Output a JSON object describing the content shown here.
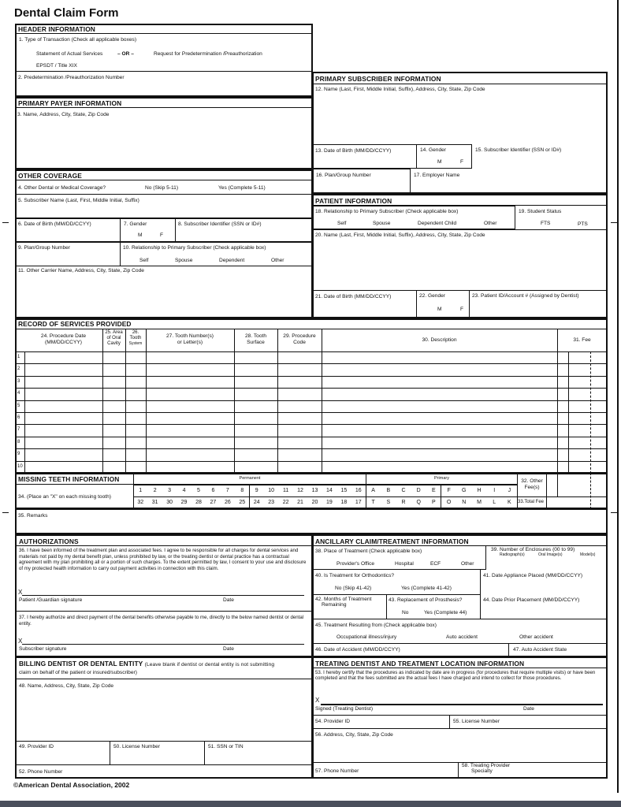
{
  "title": "Dental Claim Form",
  "header": {
    "title": "HEADER INFORMATION",
    "item1": "1. Type of Transaction (Check all applicable boxes)",
    "statement": "Statement of Actual Services",
    "or": "– OR –",
    "predetermination": "Request for Predetermination /Preauthorization",
    "epsdt": "EPSDT / Title XIX",
    "item2": "2. Predetermination /Preauthorization Number"
  },
  "payer": {
    "title": "PRIMARY PAYER INFORMATION",
    "item3": "3. Name, Address, City, State, Zip Code"
  },
  "other": {
    "title": "OTHER COVERAGE",
    "item4": "4. Other Dental or Medical Coverage?",
    "no": "No  (Skip 5-11)",
    "yes": "Yes (Complete 5-11)",
    "item5": "5. Subscriber Name (Last, First, Middle Initial, Suffix)",
    "item6": "6. Date of Birth (MM/DD/CCYY)",
    "item7": "7. Gender",
    "m": "M",
    "f": "F",
    "item8": "8. Subscriber Identifier (SSN or ID#)",
    "item9": "9. Plan/Group Number",
    "item10": "10. Relationship to Primary Subscriber (Check applicable box)",
    "self": "Self",
    "spouse": "Spouse",
    "dependent": "Dependent",
    "other": "Other",
    "item11": "11. Other Carrier Name, Address, City, State, Zip Code"
  },
  "subscriber": {
    "title": "PRIMARY SUBSCRIBER INFORMATION",
    "item12": "12. Name (Last, First, Middle Initial, Suffix), Address, City, State, Zip Code",
    "item13": "13. Date of Birth (MM/DD/CCYY)",
    "item14": "14. Gender",
    "m": "M",
    "f": "F",
    "item15": "15. Subscriber Identifier (SSN or ID#)",
    "item16": "16. Plan/Group Number",
    "item17": "17. Employer Name"
  },
  "patient": {
    "title": "PATIENT INFORMATION",
    "item18": "18. Relationship to Primary Subscriber (Check applicable box)",
    "self": "Self",
    "spouse": "Spouse",
    "dependent_child": "Dependent Child",
    "other": "Other",
    "item19": "19. Student Status",
    "fts": "FTS",
    "pts": "PTS",
    "item20": "20. Name (Last, First, Middle Initial, Suffix), Address, City, State, Zip Code",
    "item21": "21. Date of Birth (MM/DD/CCYY)",
    "item22": "22. Gender",
    "m": "M",
    "f": "F",
    "item23": "23. Patient ID/Account # (Assigned by Dentist)"
  },
  "services": {
    "title": "RECORD OF SERVICES PROVIDED",
    "col24a": "24. Procedure Date",
    "col24b": "(MM/DD/CCYY)",
    "col25a": "25. Area",
    "col25b": "of Oral",
    "col25c": "Cavity",
    "col26a": "26.",
    "col26b": "Tooth",
    "col26c": "System",
    "col27a": "27. Tooth Number(s)",
    "col27b": "or Letter(s)",
    "col28a": "28. Tooth",
    "col28b": "Surface",
    "col29a": "29. Procedure",
    "col29b": "Code",
    "col30": "30. Description",
    "col31": "31. Fee",
    "rows": [
      "1",
      "2",
      "3",
      "4",
      "5",
      "6",
      "7",
      "8",
      "9",
      "10"
    ]
  },
  "missing": {
    "title": "MISSING TEETH INFORMATION",
    "instruction": "34. (Place an \"X\" on each missing tooth)",
    "permanent": "Permanent",
    "primary": "Primary",
    "top": [
      "1",
      "2",
      "3",
      "4",
      "5",
      "6",
      "7",
      "8",
      "9",
      "10",
      "11",
      "12",
      "13",
      "14",
      "15",
      "16",
      "A",
      "B",
      "C",
      "D",
      "E",
      "F",
      "G",
      "H",
      "I",
      "J"
    ],
    "bottom": [
      "32",
      "31",
      "30",
      "29",
      "28",
      "27",
      "26",
      "25",
      "24",
      "23",
      "22",
      "21",
      "20",
      "19",
      "18",
      "17",
      "T",
      "S",
      "R",
      "Q",
      "P",
      "O",
      "N",
      "M",
      "L",
      "K"
    ],
    "other_fee_a": "32. Other",
    "other_fee_b": "Fee(s)",
    "total_fee": "33.Total Fee"
  },
  "remarks": "35. Remarks",
  "auth": {
    "title": "AUTHORIZATIONS",
    "item36": "36. I have been informed of the treatment plan and associated fees. I agree to be responsible for all charges for dental services and materials not paid by my dental benefit plan, unless prohibited by law, or the treating dentist or dental practice has a contractual agreement with my plan prohibiting all or a portion of such charges. To the extent permitted by law, I consent to your use and disclosure of my protected health information to carry out payment activities in connection with this claim.",
    "x": "X",
    "patient_sig": "Patient /Guardian signature",
    "date": "Date",
    "item37": "37. I hereby authorize and direct payment of the dental benefits otherwise payable to me, directly to the below named dentist or dental entity.",
    "subscriber_sig": "Subscriber signature"
  },
  "billing": {
    "title": "BILLING DENTIST OR DENTAL ENTITY",
    "note1": "(Leave blank if dentist or dental entity is not submitting",
    "note2": "claim on behalf of the patient or insured/subscriber)",
    "item48": "48. Name, Address, City, State, Zip Code",
    "item49": "49. Provider ID",
    "item50": "50. License Number",
    "item51": "51. SSN or TIN",
    "item52": "52. Phone Number"
  },
  "ancillary": {
    "title": "ANCILLARY CLAIM/TREATMENT INFORMATION",
    "item38": "38. Place of Treatment (Check applicable box)",
    "providers_office": "Provider's Office",
    "hospital": "Hospital",
    "ecf": "ECF",
    "other": "Other",
    "item39": "39. Number of Enclosures (00 to 99)",
    "radiographs": "Radiograph(s)",
    "oral_images": "Oral Image(s)",
    "models": "Model(s)",
    "item40": "40. Is Treatment for Orthodontics?",
    "no40": "No  (Skip 41-42)",
    "yes40": "Yes  (Complete 41-42)",
    "item41": "41. Date Appliance Placed (MM/DD/CCYY)",
    "item42a": "42. Months of Treatment",
    "item42b": "Remaining",
    "item43": "43. Replacement of Prosthesis?",
    "no43": "No",
    "yes43": "Yes (Complete 44)",
    "item44": "44. Date Prior Placement (MM/DD/CCYY)",
    "item45": "45. Treatment Resulting from (Check applicable box)",
    "occupational": "Occupational illness/injury",
    "auto": "Auto accident",
    "other_accident": "Other accident",
    "item46": "46. Date of Accident (MM/DD/CCYY)",
    "item47": "47. Auto Accident State"
  },
  "treating": {
    "title": "TREATING DENTIST AND TREATMENT LOCATION INFORMATION",
    "item53": "53. I hereby certify that the procedures as indicated by date are in progress (for procedures that require multiple visits) or have been completed and that the fees submitted are the actual fees I have charged and intend to collect for those procedures.",
    "x": "X",
    "signed": "Signed (Treating Dentist)",
    "date": "Date",
    "item54": "54. Provider ID",
    "item55": "55. License Number",
    "item56": "56. Address, City, State, Zip Code",
    "item57": "57. Phone Number",
    "item58a": "58. Treating Provider",
    "item58b": "Specialty"
  },
  "copyright": "©American Dental Association, 2002"
}
